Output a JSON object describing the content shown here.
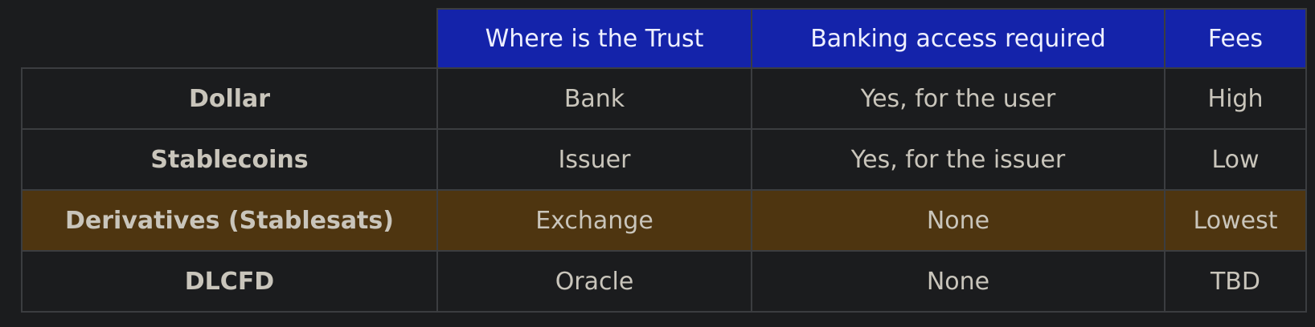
{
  "table": {
    "headers": [
      "",
      "Where is the Trust",
      "Banking access required",
      "Fees"
    ],
    "rows": [
      {
        "label": "Dollar",
        "trust": "Bank",
        "banking": "Yes, for the user",
        "fees": "High"
      },
      {
        "label": "Stablecoins",
        "trust": "Issuer",
        "banking": "Yes, for the issuer",
        "fees": "Low"
      },
      {
        "label": "Derivatives (Stablesats)",
        "trust": "Exchange",
        "banking": "None",
        "fees": "Lowest"
      },
      {
        "label": "DLCFD",
        "trust": "Oracle",
        "banking": "None",
        "fees": "TBD"
      }
    ],
    "header_color": "#1423aa",
    "highlight_color": "#4e3510",
    "highlighted_row_index": 2
  }
}
